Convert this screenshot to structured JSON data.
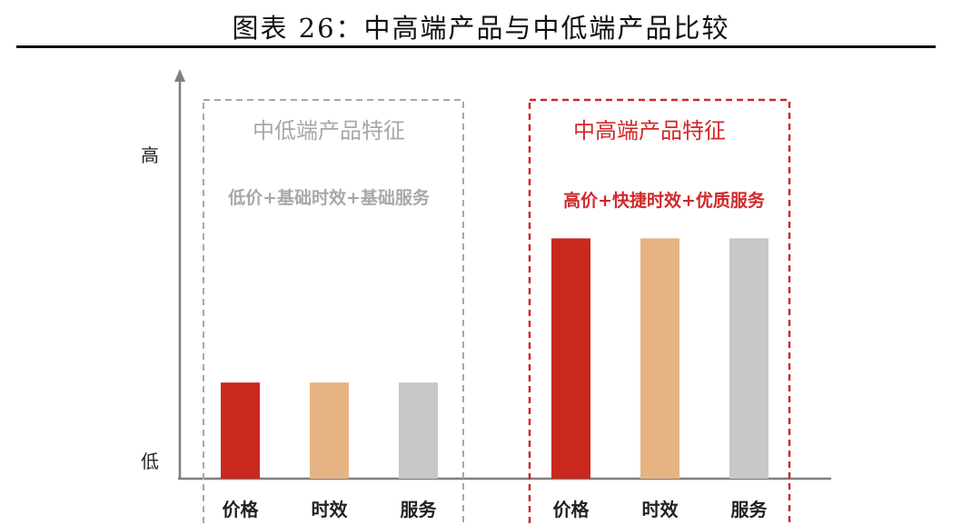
{
  "title": "图表 26：中高端产品与中低端产品比较",
  "colors": {
    "price": "#C9281E",
    "time": "#E6B483",
    "service": "#C8C8C8",
    "low_box": "#A8A8A8",
    "high_box": "#D0282A",
    "axis": "#7F7F7F"
  },
  "chart_data": {
    "type": "bar",
    "y_axis_labels": {
      "high": "高",
      "low": "低"
    },
    "ylim": [
      0,
      1
    ],
    "groups": [
      {
        "name": "中低端产品特征",
        "subtitle": "低价+基础时效+基础服务",
        "categories": [
          "价格",
          "时效",
          "服务"
        ],
        "values": [
          0.24,
          0.24,
          0.24
        ]
      },
      {
        "name": "中高端产品特征",
        "subtitle": "高价+快捷时效+优质服务",
        "categories": [
          "价格",
          "时效",
          "服务"
        ],
        "values": [
          0.6,
          0.6,
          0.6
        ]
      }
    ]
  }
}
